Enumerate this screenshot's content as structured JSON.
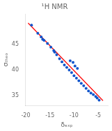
{
  "chart_data": {
    "type": "scatter",
    "title": "¹H NMR",
    "xlabel": "δₑₓₚ",
    "ylabel": "σₜₕₑₒ",
    "xlim": [
      -20,
      -3
    ],
    "ylim": [
      33,
      51
    ],
    "xticks": [
      -20,
      -15,
      -10,
      -5
    ],
    "yticks": [
      35,
      40,
      45
    ],
    "grid": false,
    "series": [
      {
        "type": "line",
        "color": "red",
        "x": [
          -19.5,
          -4.0
        ],
        "values": [
          49.2,
          34.0
        ]
      },
      {
        "type": "scatter",
        "color": "#1155cc",
        "x": [
          -18.8,
          -17.5,
          -16.8,
          -16.2,
          -15.5,
          -14.8,
          -14.2,
          -13.6,
          -13.0,
          -12.5,
          -12.0,
          -11.5,
          -11.0,
          -10.5,
          -10.0,
          -9.5,
          -9.0,
          -8.5,
          -8.0,
          -7.5,
          -7.0,
          -6.5,
          -6.0,
          -5.5,
          -5.2,
          -4.8,
          -16.5,
          -14.0,
          -10.8,
          -10.2,
          -9.8,
          -9.3
        ],
        "values": [
          48.8,
          47.2,
          46.5,
          45.8,
          45.2,
          44.5,
          43.8,
          43.0,
          42.2,
          41.6,
          41.0,
          40.5,
          40.0,
          39.5,
          38.9,
          38.4,
          37.9,
          37.4,
          36.9,
          36.4,
          35.9,
          35.5,
          35.2,
          34.8,
          34.5,
          34.1,
          46.0,
          43.5,
          41.8,
          41.5,
          40.8,
          40.3
        ]
      }
    ]
  }
}
